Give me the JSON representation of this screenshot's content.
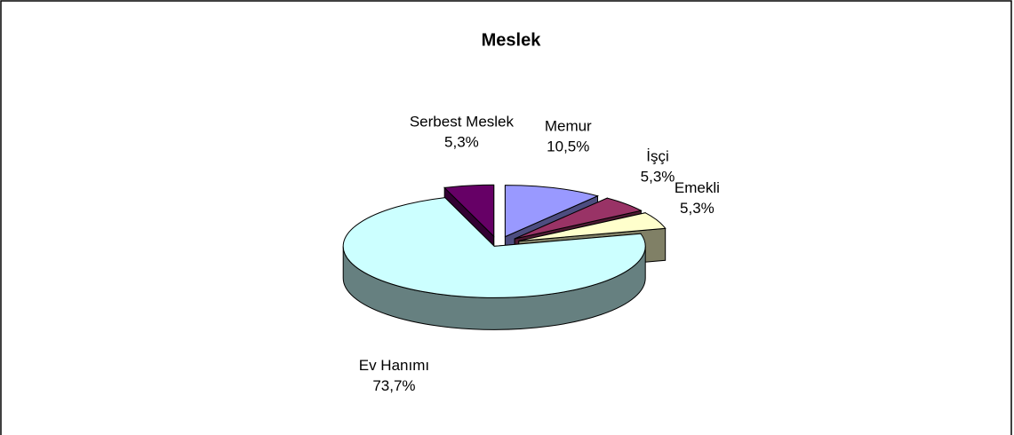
{
  "chart_data": {
    "type": "pie",
    "title": "Meslek",
    "categories": [
      "Memur",
      "İşçi",
      "Emekli",
      "Ev Hanımı",
      "Serbest Meslek"
    ],
    "values": [
      10.5,
      5.3,
      5.3,
      73.7,
      5.3
    ],
    "value_labels": [
      "10,5%",
      "5,3%",
      "5,3%",
      "73,7%",
      "5,3%"
    ],
    "colors": [
      "#9999ff",
      "#993366",
      "#ffffcc",
      "#ccffff",
      "#660066"
    ]
  }
}
